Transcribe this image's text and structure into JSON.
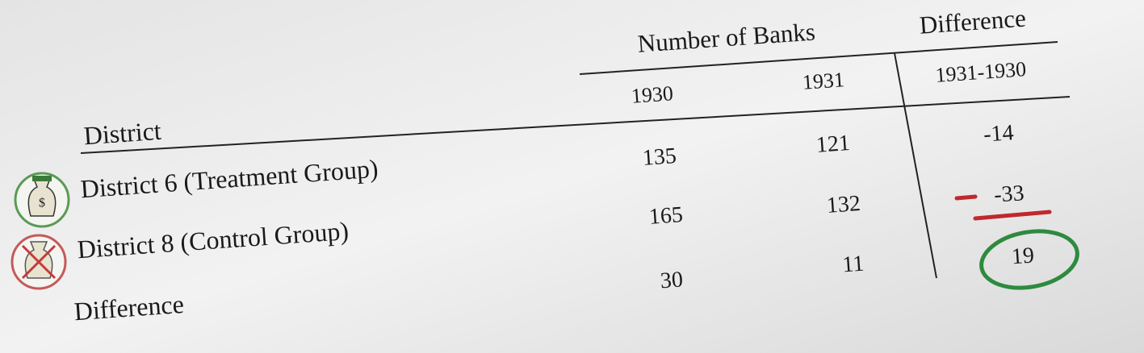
{
  "table": {
    "column_groups": [
      "Number of Banks",
      "Difference"
    ],
    "columns": [
      "1930",
      "1931",
      "1931-1930"
    ],
    "row_header": "District",
    "rows": [
      {
        "label": "District 6 (Treatment Group)",
        "values": [
          135,
          121,
          -14
        ]
      },
      {
        "label": "District 8 (Control Group)",
        "values": [
          165,
          132,
          -33
        ]
      },
      {
        "label": "Difference",
        "values": [
          30,
          11,
          19
        ]
      }
    ]
  }
}
